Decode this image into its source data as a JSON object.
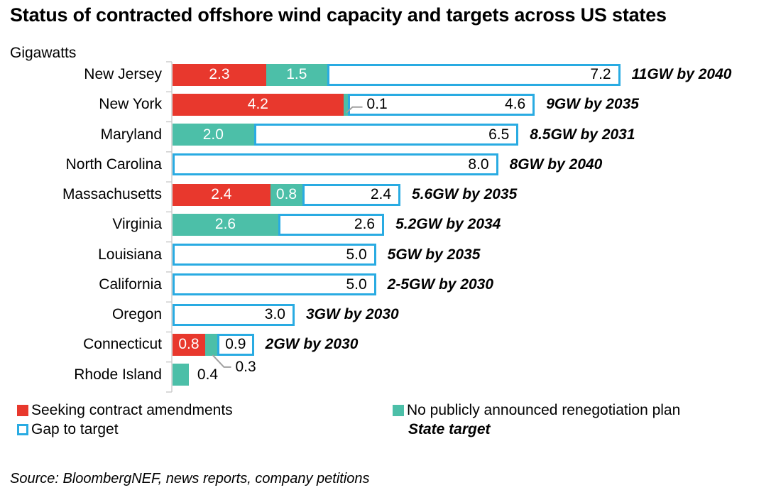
{
  "title": "Status of contracted offshore wind capacity and targets across US states",
  "unit_label": "Gigawatts",
  "chart_data": {
    "type": "bar",
    "orientation": "horizontal-stacked",
    "unit": "GW",
    "xlim": [
      0,
      11
    ],
    "grid": false,
    "categories": [
      "New Jersey",
      "New York",
      "Maryland",
      "North Carolina",
      "Massachusetts",
      "Virginia",
      "Louisiana",
      "California",
      "Oregon",
      "Connecticut",
      "Rhode Island"
    ],
    "series": [
      {
        "name": "Seeking contract amendments",
        "color": "#e8382d",
        "values": [
          2.3,
          4.2,
          0,
          0,
          2.4,
          0,
          0,
          0,
          0,
          0.8,
          0
        ]
      },
      {
        "name": "No publicly announced renegotiation plan",
        "color": "#4cbfa8",
        "values": [
          1.5,
          0.1,
          2.0,
          0,
          0.8,
          2.6,
          0,
          0,
          0,
          0.3,
          0.4
        ]
      },
      {
        "name": "Gap to target",
        "color": "#ffffff",
        "border_color": "#29abe2",
        "values": [
          7.2,
          4.6,
          6.5,
          8.0,
          2.4,
          2.6,
          5.0,
          5.0,
          3.0,
          0.9,
          0
        ]
      }
    ],
    "state_targets": [
      "11GW by 2040",
      "9GW by 2035",
      "8.5GW by 2031",
      "8GW by 2040",
      "5.6GW by 2035",
      "5.2GW by 2034",
      "5GW by 2035",
      "2-5GW by 2030",
      "3GW by 2030",
      "2GW by 2030",
      ""
    ],
    "callouts": [
      {
        "category": "New York",
        "series": "No publicly announced renegotiation plan",
        "label": "0.1",
        "placement": "leader-into-gap"
      },
      {
        "category": "Connecticut",
        "series": "No publicly announced renegotiation plan",
        "label": "0.3",
        "placement": "leader-below"
      },
      {
        "category": "Rhode Island",
        "series": "No publicly announced renegotiation plan",
        "label": "0.4",
        "placement": "outside-right"
      }
    ],
    "gap_label_alignment_overrides": {
      "Connecticut": "center"
    },
    "leader_line_color": "#a0a0a0",
    "axis_color": "#c6c6c6"
  },
  "legend": {
    "items": [
      {
        "label": "Seeking contract amendments",
        "swatch": "filled",
        "color": "#e8382d"
      },
      {
        "label": "Gap to target",
        "swatch": "outlined",
        "color": "#29abe2"
      },
      {
        "label": "No publicly announced renegotiation plan",
        "swatch": "filled",
        "color": "#4cbfa8"
      },
      {
        "label": "State target",
        "swatch": "none",
        "color": ""
      }
    ]
  },
  "source": "Source: BloombergNEF, news reports, company petitions"
}
